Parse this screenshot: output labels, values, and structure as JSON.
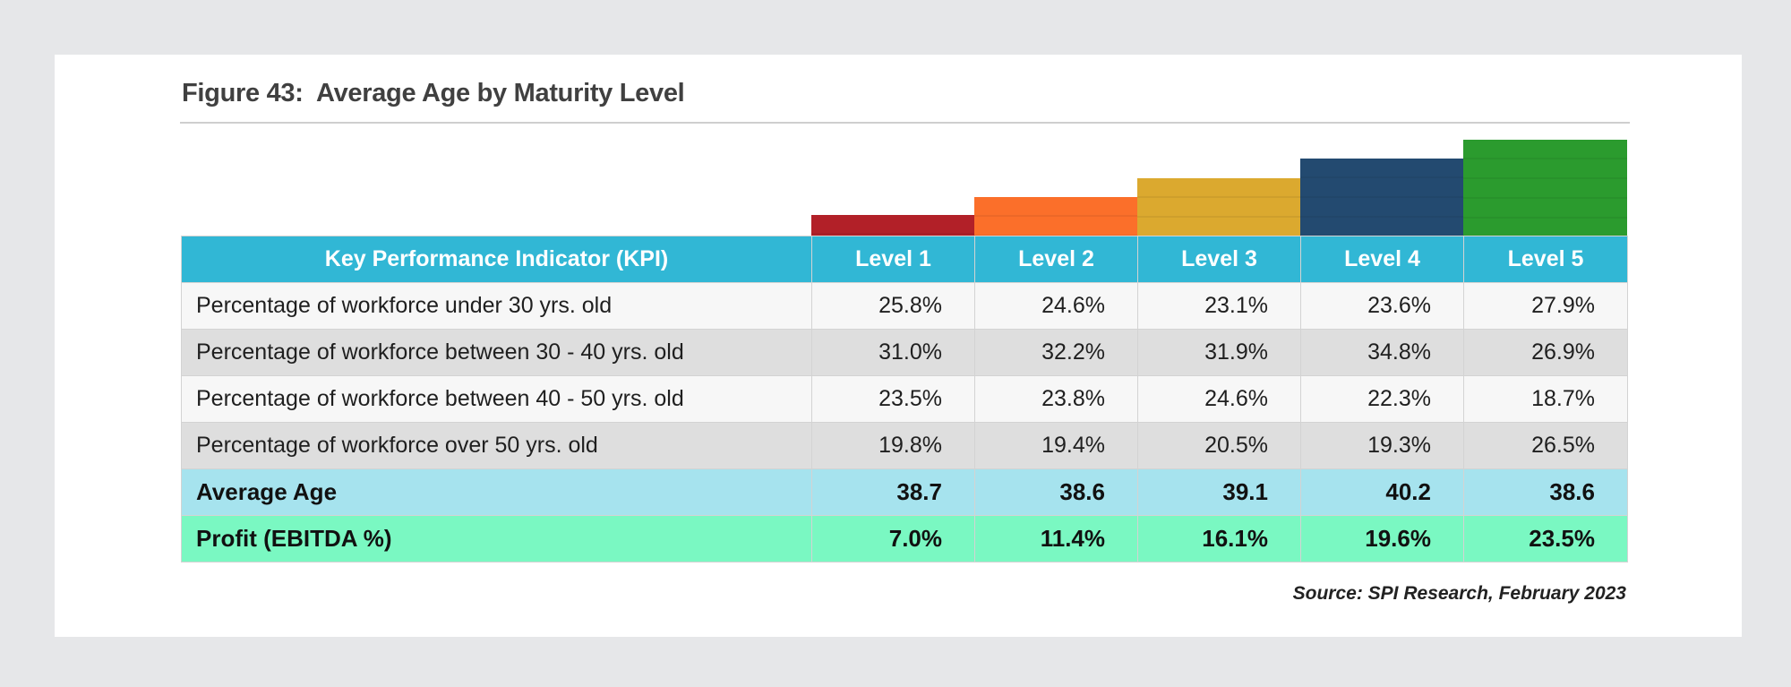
{
  "figure": {
    "title": "Figure 43:  Average Age by Maturity Level",
    "source": "Source: SPI Research, February 2023"
  },
  "colors": {
    "level1": "#b22028",
    "level2": "#fb6f2a",
    "level3": "#dba92f",
    "level4": "#234a70",
    "level5": "#2b9b2e",
    "header": "#31b7d5",
    "avg_row": "#a6e3ee",
    "profit_row": "#7af8c2"
  },
  "table": {
    "header_kpi": "Key Performance Indicator (KPI)",
    "levels": [
      "Level 1",
      "Level 2",
      "Level 3",
      "Level 4",
      "Level 5"
    ],
    "rows": [
      {
        "label": "Percentage of workforce under 30 yrs. old",
        "values": [
          "25.8%",
          "24.6%",
          "23.1%",
          "23.6%",
          "27.9%"
        ]
      },
      {
        "label": "Percentage of workforce between 30 - 40 yrs. old",
        "values": [
          "31.0%",
          "32.2%",
          "31.9%",
          "34.8%",
          "26.9%"
        ]
      },
      {
        "label": "Percentage of workforce between 40 - 50 yrs. old",
        "values": [
          "23.5%",
          "23.8%",
          "24.6%",
          "22.3%",
          "18.7%"
        ]
      },
      {
        "label": "Percentage of workforce over 50 yrs. old",
        "values": [
          "19.8%",
          "19.4%",
          "20.5%",
          "19.3%",
          "26.5%"
        ]
      },
      {
        "label": "Average Age",
        "values": [
          "38.7",
          "38.6",
          "39.1",
          "40.2",
          "38.6"
        ]
      },
      {
        "label": "Profit (EBITDA %)",
        "values": [
          "7.0%",
          "11.4%",
          "16.1%",
          "19.6%",
          "23.5%"
        ]
      }
    ]
  }
}
